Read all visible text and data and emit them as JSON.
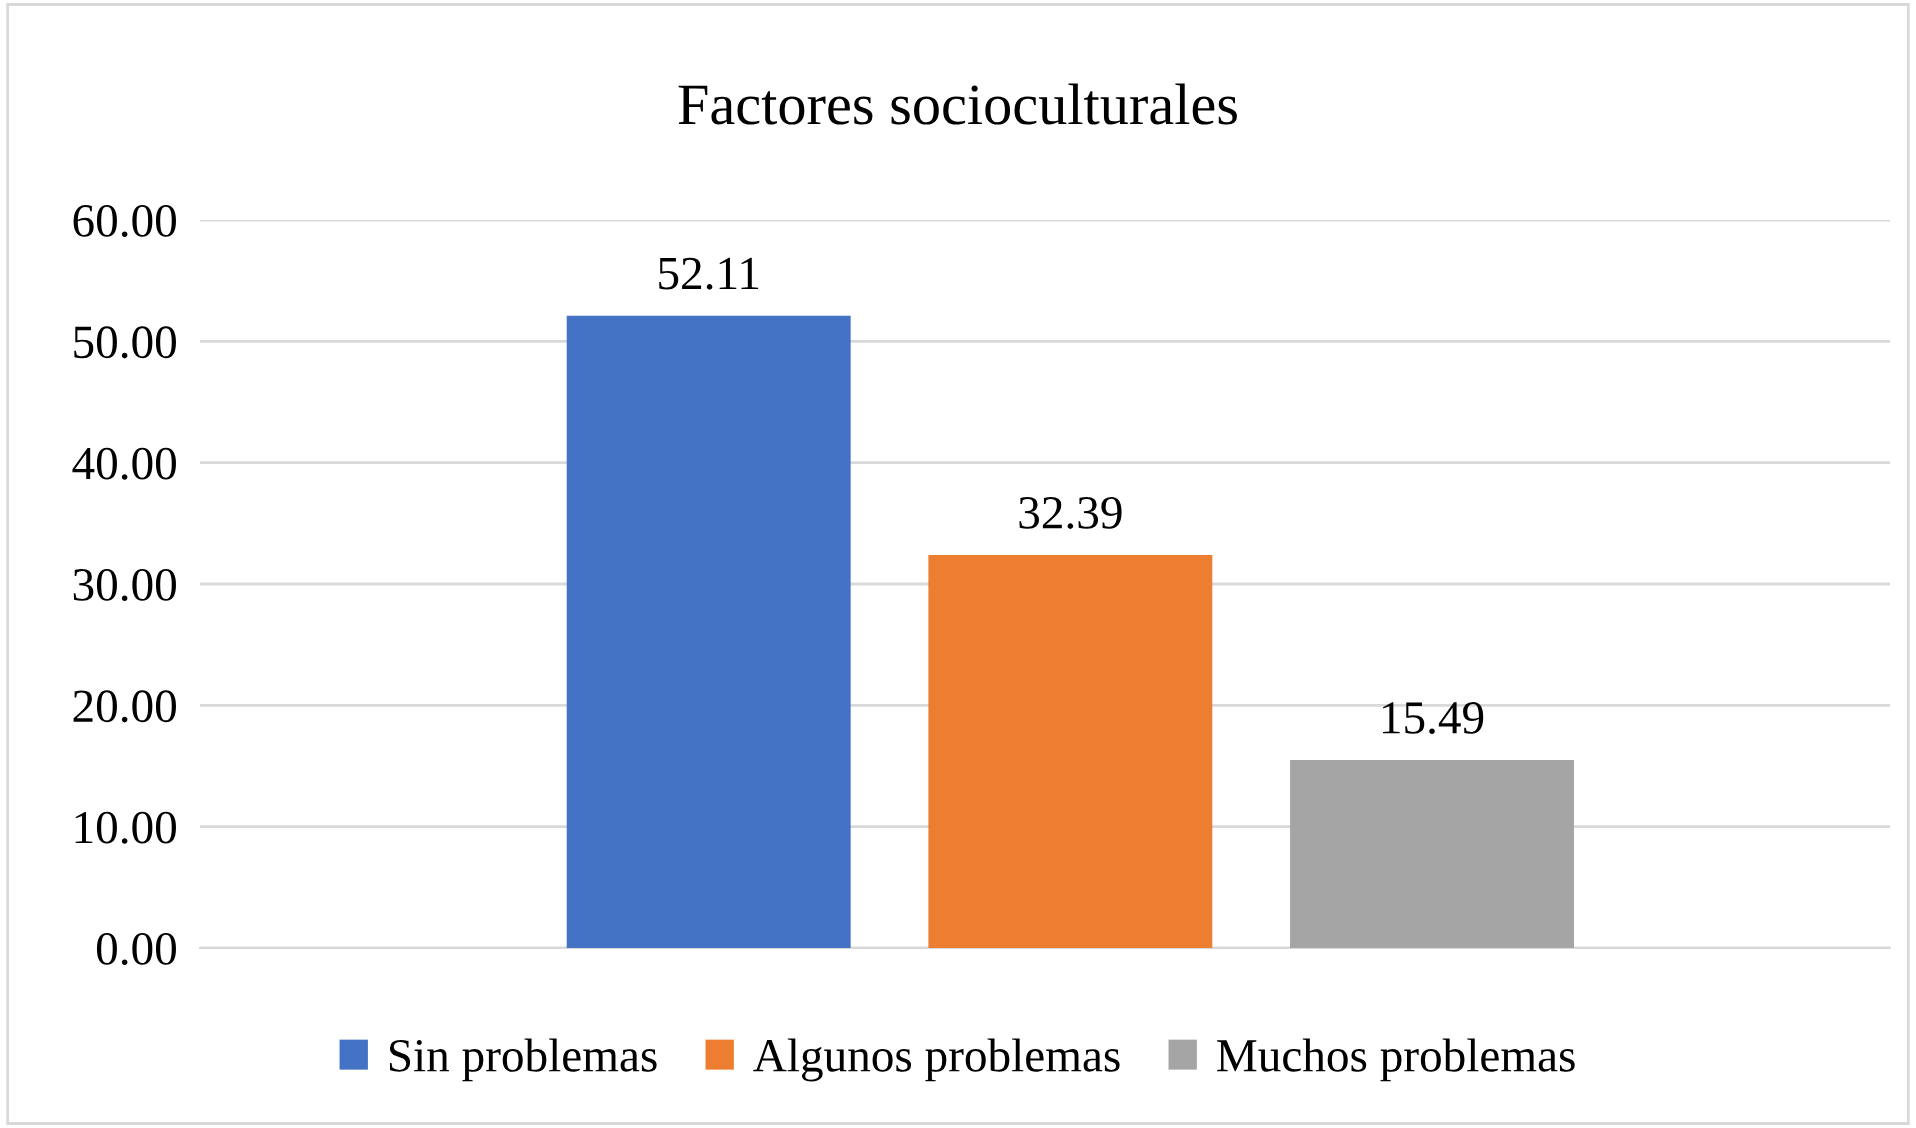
{
  "chart_data": {
    "type": "bar",
    "title": "Factores socioculturales",
    "categories": [
      null
    ],
    "series": [
      {
        "name": "Sin problemas",
        "color": "#4472c4",
        "values": [
          52.11
        ]
      },
      {
        "name": "Algunos problemas",
        "color": "#ed7d31",
        "values": [
          32.39
        ]
      },
      {
        "name": "Muchos problemas",
        "color": "#a5a5a5",
        "values": [
          15.49
        ]
      }
    ],
    "ylim": [
      0,
      60
    ],
    "yticks": [
      {
        "value": 0,
        "label": "0.00"
      },
      {
        "value": 10,
        "label": "10.00"
      },
      {
        "value": 20,
        "label": "20.00"
      },
      {
        "value": 30,
        "label": "30.00"
      },
      {
        "value": 40,
        "label": "40.00"
      },
      {
        "value": 50,
        "label": "50.00"
      },
      {
        "value": 60,
        "label": "60.00"
      }
    ],
    "grid": "y",
    "legend": "bottom",
    "data_labels": true
  }
}
